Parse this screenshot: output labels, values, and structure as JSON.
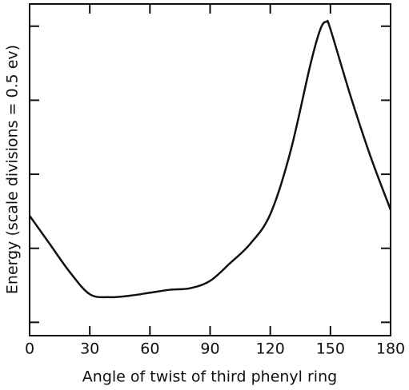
{
  "chart_data": {
    "type": "line",
    "x_label": "Angle of twist of third phenyl ring",
    "y_label": "Energy (scale divisions = 0.5 ev)",
    "x": [
      0,
      10,
      20,
      30,
      40,
      50,
      60,
      70,
      80,
      90,
      100,
      110,
      120,
      130,
      140,
      145,
      148,
      150,
      160,
      170,
      180
    ],
    "series": [
      {
        "color": "#111111",
        "values": [
          0.72,
          0.53,
          0.34,
          0.19,
          0.17,
          0.18,
          0.2,
          0.22,
          0.23,
          0.28,
          0.4,
          0.53,
          0.73,
          1.15,
          1.74,
          1.98,
          2.03,
          1.98,
          1.53,
          1.12,
          0.76
        ]
      }
    ],
    "xlim": [
      0,
      180
    ],
    "xticks": [
      0,
      30,
      60,
      90,
      120,
      150,
      180
    ],
    "ylim": [
      -0.09,
      2.15
    ],
    "yticks": [
      0,
      0.5,
      1,
      1.5,
      2
    ]
  }
}
